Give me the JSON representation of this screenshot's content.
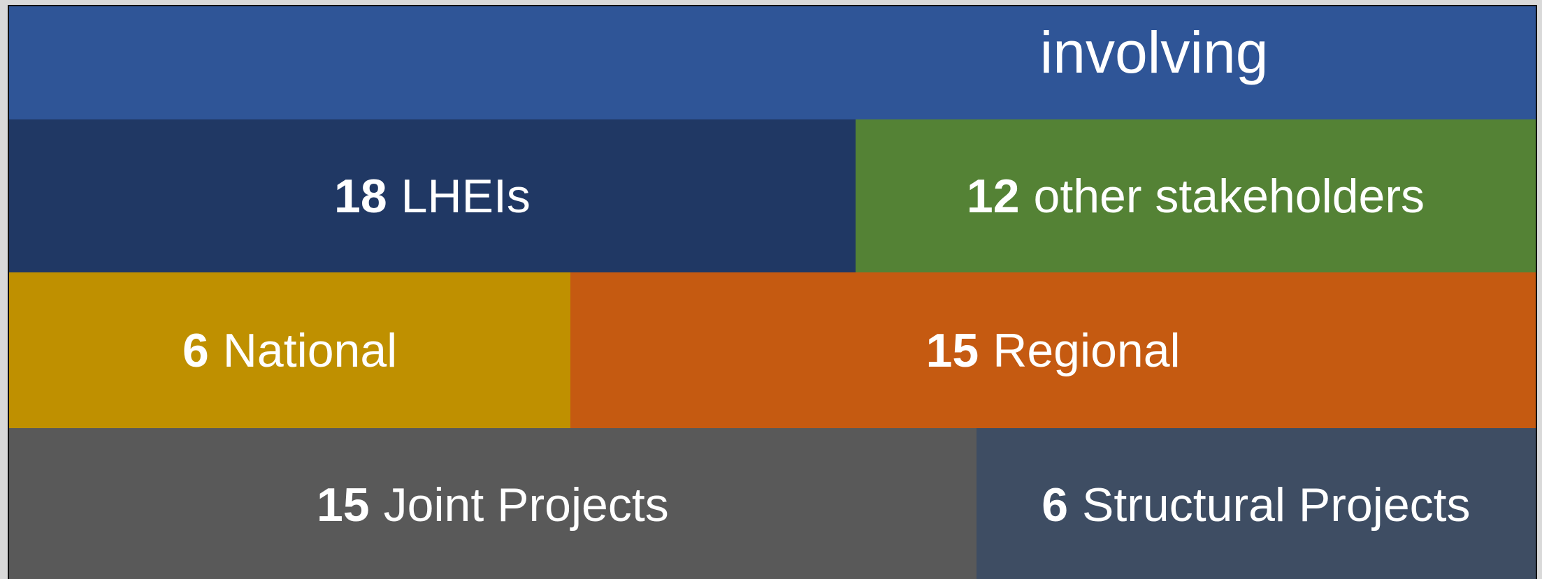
{
  "header": {
    "title": "involving"
  },
  "rows": [
    [
      {
        "number": "18",
        "label": "LHEIs",
        "color": "#203864"
      },
      {
        "number": "12",
        "label": "other stakeholders",
        "color": "#548235"
      }
    ],
    [
      {
        "number": "6",
        "label": "National",
        "color": "#bf9000"
      },
      {
        "number": "15",
        "label": "Regional",
        "color": "#c55a11"
      }
    ],
    [
      {
        "number": "15",
        "label": "Joint Projects",
        "color": "#595959"
      },
      {
        "number": "6",
        "label": "Structural Projects",
        "color": "#3e4d63"
      }
    ]
  ]
}
